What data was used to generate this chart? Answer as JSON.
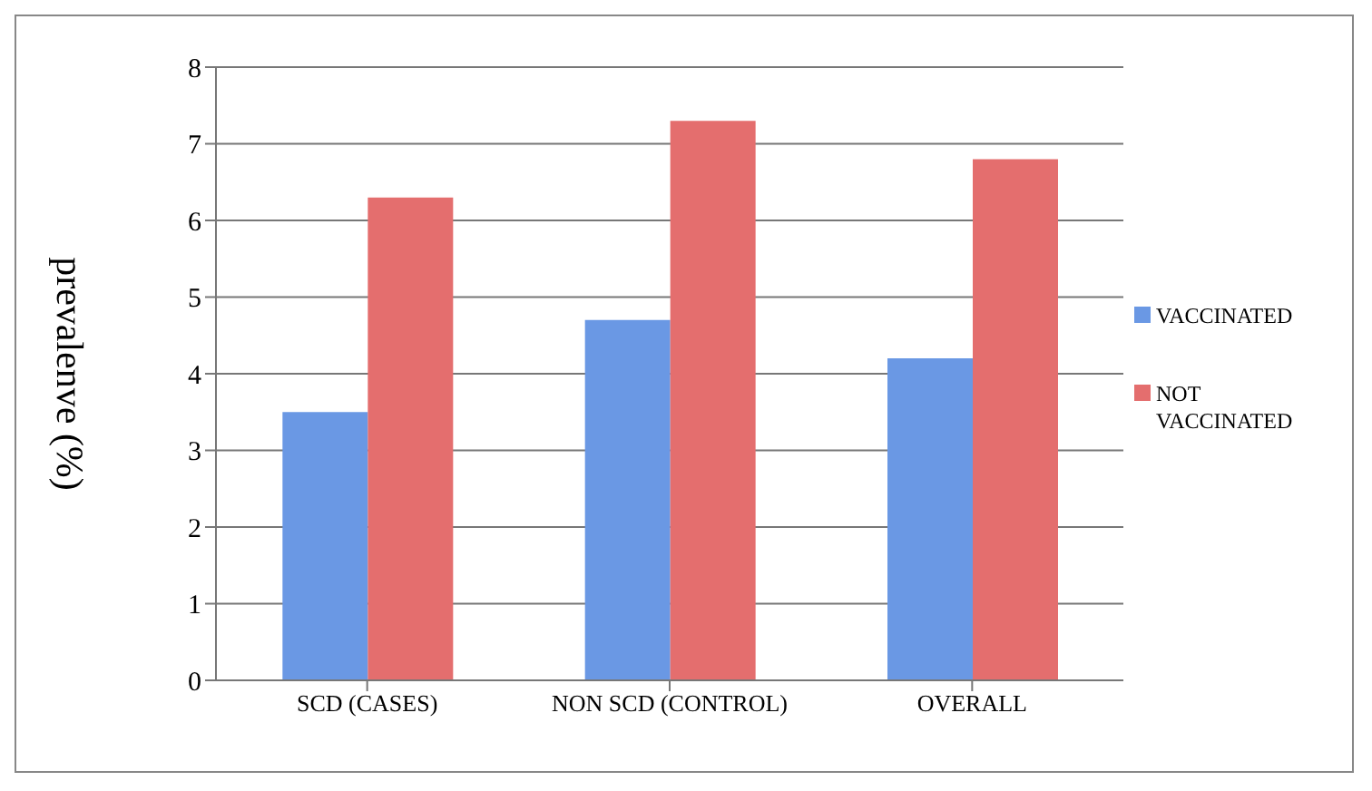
{
  "chart_data": {
    "type": "bar",
    "ylabel": "prevalenve (%)",
    "categories": [
      "SCD (CASES)",
      "NON SCD (CONTROL)",
      "OVERALL"
    ],
    "series": [
      {
        "name": "VACCINATED",
        "color": "#6a98e4",
        "values": [
          3.5,
          4.7,
          4.2
        ]
      },
      {
        "name": "NOT VACCINATED",
        "color": "#e46e6e",
        "values": [
          6.3,
          7.3,
          6.8
        ]
      }
    ],
    "ylim": [
      0,
      8
    ],
    "yticks": [
      0,
      1,
      2,
      3,
      4,
      5,
      6,
      7,
      8
    ],
    "grid": "y",
    "legend": "right"
  }
}
